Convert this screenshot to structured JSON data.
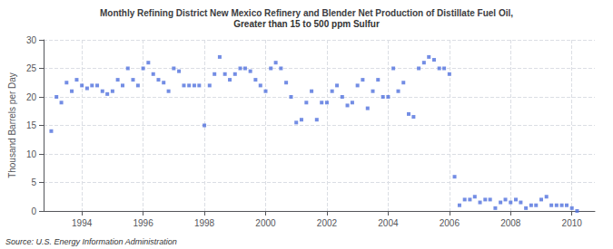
{
  "chart_data": {
    "type": "scatter",
    "title": "Monthly Refining District New Mexico Refinery and Blender Net Production of Distillate Fuel Oil,",
    "subtitle": "Greater than 15 to 500 ppm Sulfur",
    "ylabel": "Thousand Barrels per Day",
    "annotation": "Source: U.S. Energy Information Administration",
    "marker": "square",
    "grid": true,
    "xlim": [
      1992.75,
      2010.75
    ],
    "xticks": [
      1994,
      1996,
      1998,
      2000,
      2002,
      2004,
      2006,
      2008,
      2010
    ],
    "ylim": [
      0,
      30
    ],
    "yticks": [
      0,
      5,
      10,
      15,
      20,
      25,
      30
    ],
    "x": [
      1993.0,
      1993.17,
      1993.33,
      1993.5,
      1993.67,
      1993.83,
      1994.0,
      1994.17,
      1994.33,
      1994.5,
      1994.67,
      1994.83,
      1995.0,
      1995.17,
      1995.33,
      1995.5,
      1995.67,
      1995.83,
      1996.0,
      1996.17,
      1996.33,
      1996.5,
      1996.67,
      1996.83,
      1997.0,
      1997.17,
      1997.33,
      1997.5,
      1997.67,
      1997.83,
      1998.0,
      1998.17,
      1998.33,
      1998.5,
      1998.67,
      1998.83,
      1999.0,
      1999.17,
      1999.33,
      1999.5,
      1999.67,
      1999.83,
      2000.0,
      2000.17,
      2000.33,
      2000.5,
      2000.67,
      2000.83,
      2001.0,
      2001.17,
      2001.33,
      2001.5,
      2001.67,
      2001.83,
      2002.0,
      2002.17,
      2002.33,
      2002.5,
      2002.67,
      2002.83,
      2003.0,
      2003.17,
      2003.33,
      2003.5,
      2003.67,
      2003.83,
      2004.0,
      2004.17,
      2004.33,
      2004.5,
      2004.67,
      2004.83,
      2005.0,
      2005.17,
      2005.33,
      2005.5,
      2005.67,
      2005.83,
      2006.0,
      2006.17,
      2006.33,
      2006.5,
      2006.67,
      2006.83,
      2007.0,
      2007.17,
      2007.33,
      2007.5,
      2007.67,
      2007.83,
      2008.0,
      2008.17,
      2008.33,
      2008.5,
      2008.67,
      2008.83,
      2009.0,
      2009.17,
      2009.33,
      2009.5,
      2009.67,
      2009.83,
      2010.0,
      2010.17
    ],
    "values": [
      14.0,
      20.0,
      19.0,
      22.5,
      21.0,
      23.0,
      22.0,
      21.5,
      22.0,
      22.0,
      21.0,
      20.5,
      21.0,
      23.0,
      22.0,
      25.0,
      23.0,
      22.0,
      25.0,
      26.0,
      24.0,
      23.0,
      22.5,
      21.0,
      25.0,
      24.5,
      22.0,
      22.0,
      22.0,
      22.0,
      15.0,
      22.0,
      24.0,
      27.0,
      24.0,
      23.0,
      24.0,
      25.0,
      25.0,
      24.5,
      23.0,
      22.0,
      21.0,
      25.0,
      26.0,
      25.0,
      22.5,
      20.0,
      15.5,
      16.0,
      19.0,
      21.0,
      16.0,
      19.0,
      19.0,
      21.0,
      22.0,
      20.0,
      18.5,
      19.0,
      22.0,
      23.0,
      18.0,
      21.0,
      23.0,
      20.0,
      20.0,
      25.0,
      21.0,
      22.5,
      17.0,
      16.5,
      25.0,
      26.0,
      27.0,
      26.5,
      25.0,
      25.0,
      24.0,
      6.0,
      1.0,
      2.0,
      2.0,
      2.5,
      1.5,
      2.0,
      2.0,
      0.5,
      1.5,
      2.0,
      1.5,
      2.0,
      1.5,
      0.5,
      1.0,
      1.0,
      2.0,
      2.5,
      1.0,
      1.0,
      1.0,
      1.0,
      0.5,
      0.0
    ]
  }
}
